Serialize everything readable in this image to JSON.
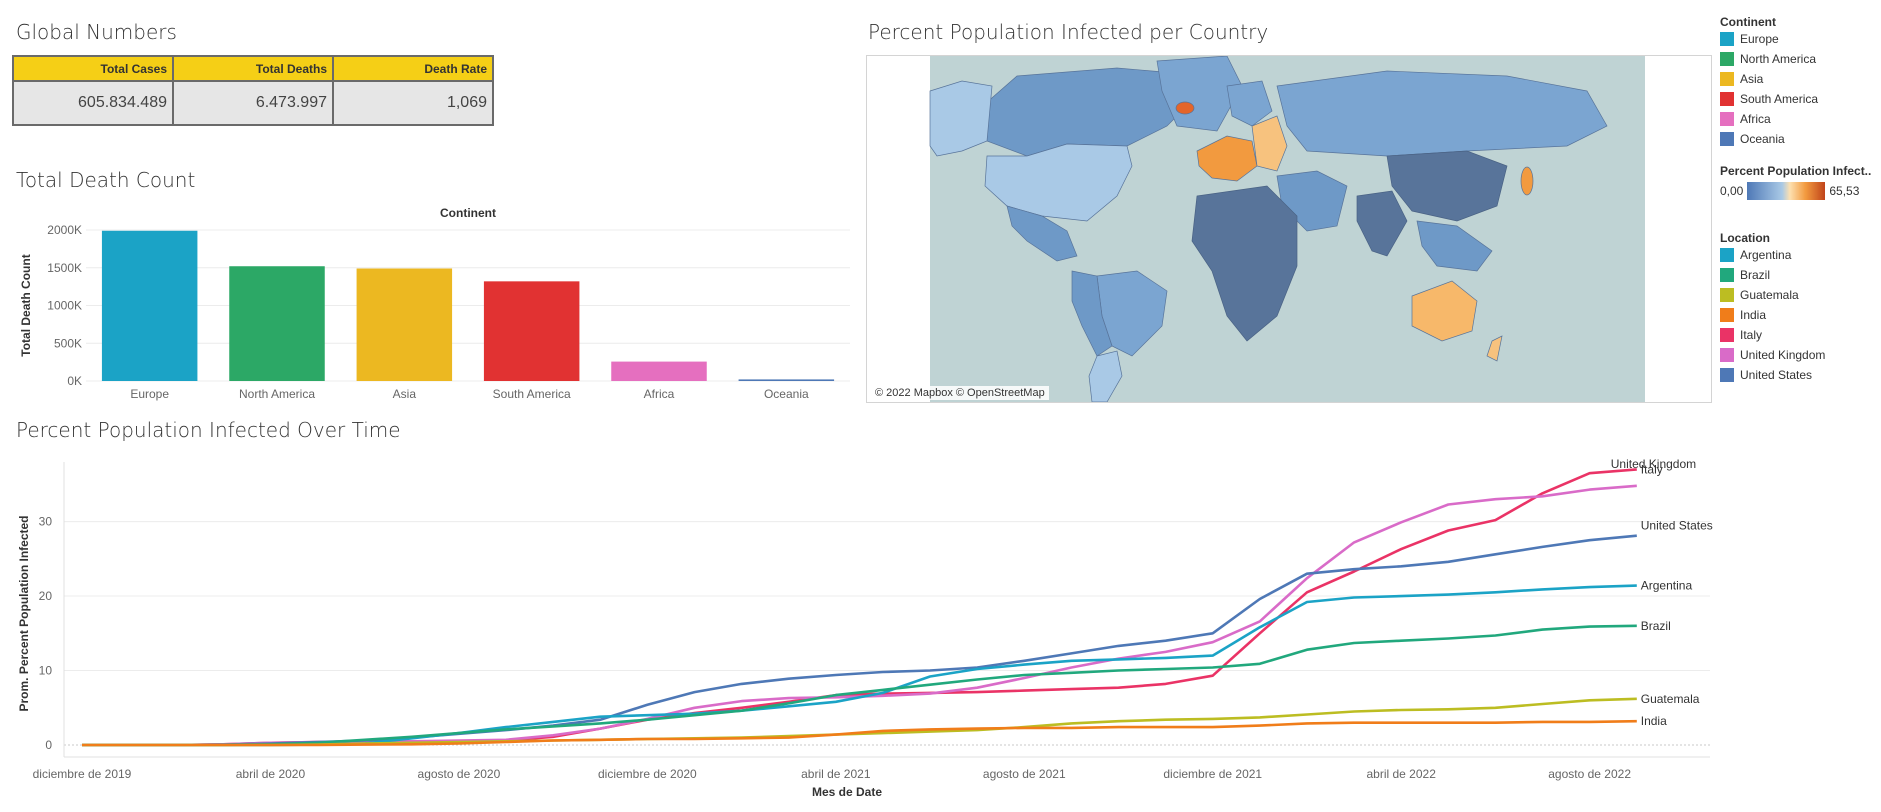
{
  "global_numbers": {
    "title": "Global Numbers",
    "headers": [
      "Total Cases",
      "Total Deaths",
      "Death Rate"
    ],
    "values": [
      "605.834.489",
      "6.473.997",
      "1,069"
    ]
  },
  "death_count": {
    "title": "Total Death Count"
  },
  "map": {
    "title": "Percent Population Infected per Country",
    "credit": "© 2022 Mapbox © OpenStreetMap"
  },
  "continent_legend": {
    "title": "Continent",
    "items": [
      {
        "label": "Europe",
        "color": "#1ba3c6"
      },
      {
        "label": "North America",
        "color": "#2ca866"
      },
      {
        "label": "Asia",
        "color": "#ecb821"
      },
      {
        "label": "South America",
        "color": "#e13232"
      },
      {
        "label": "Africa",
        "color": "#e56fbf"
      },
      {
        "label": "Oceania",
        "color": "#4e78b6"
      }
    ]
  },
  "color_legend": {
    "title": "Percent Population Infect..",
    "min": "0,00",
    "max": "65,53"
  },
  "location_legend": {
    "title": "Location",
    "items": [
      {
        "label": "Argentina",
        "color": "#1ba3c6"
      },
      {
        "label": "Brazil",
        "color": "#21a87d"
      },
      {
        "label": "Guatemala",
        "color": "#bcbd22"
      },
      {
        "label": "India",
        "color": "#f07d1a"
      },
      {
        "label": "Italy",
        "color": "#ea3366"
      },
      {
        "label": "United Kingdom",
        "color": "#d96bc8"
      },
      {
        "label": "United States",
        "color": "#4e78b6"
      }
    ]
  },
  "timeline": {
    "title": "Percent Population Infected Over Time"
  },
  "chart_data": [
    {
      "type": "bar",
      "title": "",
      "xlabel": "Continent",
      "ylabel": "Total Death Count",
      "categories": [
        "Europe",
        "North America",
        "Asia",
        "South America",
        "Africa",
        "Oceania"
      ],
      "values": [
        1990000,
        1520000,
        1490000,
        1320000,
        257000,
        21000
      ],
      "colors": [
        "#1ba3c6",
        "#2ca866",
        "#ecb821",
        "#e13232",
        "#e56fbf",
        "#4e78b6"
      ],
      "ylim": [
        0,
        2000000
      ],
      "yticks": [
        0,
        500000,
        1000000,
        1500000,
        2000000
      ],
      "ytick_labels": [
        "0K",
        "500K",
        "1000K",
        "1500K",
        "2000K"
      ],
      "grid": true
    },
    {
      "type": "line",
      "title": "",
      "xlabel": "Mes de Date",
      "ylabel": "Prom. Percent Population Infected",
      "x": [
        "2020-01",
        "2020-02",
        "2020-03",
        "2020-04",
        "2020-05",
        "2020-06",
        "2020-07",
        "2020-08",
        "2020-09",
        "2020-10",
        "2020-11",
        "2020-12",
        "2021-01",
        "2021-02",
        "2021-03",
        "2021-04",
        "2021-05",
        "2021-06",
        "2021-07",
        "2021-08",
        "2021-09",
        "2021-10",
        "2021-11",
        "2021-12",
        "2022-01",
        "2022-02",
        "2022-03",
        "2022-04",
        "2022-05",
        "2022-06",
        "2022-07",
        "2022-08",
        "2022-09"
      ],
      "xtick_labels": [
        "diciembre de 2019",
        "abril de 2020",
        "agosto de 2020",
        "diciembre de 2020",
        "abril de 2021",
        "agosto de 2021",
        "diciembre de 2021",
        "abril de 2022",
        "agosto de 2022"
      ],
      "ylim": [
        0,
        38
      ],
      "yticks": [
        0,
        10,
        20,
        30
      ],
      "series": [
        {
          "name": "Italy",
          "color": "#ea3366",
          "start": "2020-01",
          "values": [
            0,
            0,
            0.1,
            0.3,
            0.4,
            0.4,
            0.4,
            0.5,
            0.6,
            1.1,
            2.2,
            3.4,
            4.3,
            5.0,
            5.8,
            6.7,
            6.9,
            7.0,
            7.1,
            7.3,
            7.5,
            7.7,
            8.2,
            9.3,
            15.0,
            20.5,
            23.3,
            26.3,
            28.8,
            30.2,
            33.8,
            36.5,
            37.0
          ]
        },
        {
          "name": "United Kingdom",
          "color": "#d96bc8",
          "start": "2020-01",
          "values": [
            0,
            0,
            0.1,
            0.3,
            0.4,
            0.5,
            0.5,
            0.6,
            0.7,
            1.3,
            2.2,
            3.5,
            5.0,
            5.9,
            6.3,
            6.4,
            6.6,
            6.9,
            7.7,
            9.0,
            10.4,
            11.6,
            12.5,
            13.8,
            16.6,
            22.4,
            27.2,
            29.9,
            32.3,
            33.0,
            33.4,
            34.3,
            34.8
          ]
        },
        {
          "name": "United States",
          "color": "#4e78b6",
          "start": "2020-01",
          "values": [
            0,
            0,
            0.05,
            0.2,
            0.4,
            0.6,
            1.0,
            1.5,
            2.0,
            2.6,
            3.4,
            5.4,
            7.1,
            8.2,
            8.9,
            9.4,
            9.8,
            10.0,
            10.4,
            11.3,
            12.3,
            13.3,
            14.0,
            15.0,
            19.6,
            23.0,
            23.6,
            24.0,
            24.6,
            25.6,
            26.6,
            27.5,
            28.1
          ]
        },
        {
          "name": "Argentina",
          "color": "#1ba3c6",
          "start": "2020-01",
          "values": [
            0,
            0,
            0,
            0,
            0.05,
            0.2,
            0.9,
            1.6,
            2.4,
            3.1,
            3.8,
            4.0,
            4.2,
            4.6,
            5.2,
            5.8,
            7.0,
            9.2,
            10.2,
            10.8,
            11.3,
            11.5,
            11.7,
            12.0,
            15.8,
            19.2,
            19.8,
            20.0,
            20.2,
            20.5,
            20.9,
            21.2,
            21.4
          ]
        },
        {
          "name": "Brazil",
          "color": "#21a87d",
          "start": "2020-01",
          "values": [
            0,
            0,
            0,
            0.1,
            0.3,
            0.7,
            1.1,
            1.6,
            2.1,
            2.5,
            2.9,
            3.4,
            4.0,
            4.6,
            5.6,
            6.7,
            7.4,
            8.1,
            8.8,
            9.4,
            9.7,
            10.0,
            10.2,
            10.4,
            10.9,
            12.8,
            13.7,
            14.0,
            14.3,
            14.7,
            15.5,
            15.9,
            16.0
          ]
        },
        {
          "name": "Guatemala",
          "color": "#bcbd22",
          "start": "2020-01",
          "values": [
            0,
            0,
            0,
            0,
            0.05,
            0.2,
            0.3,
            0.4,
            0.5,
            0.6,
            0.7,
            0.8,
            0.9,
            1.0,
            1.2,
            1.4,
            1.6,
            1.8,
            2.0,
            2.4,
            2.9,
            3.2,
            3.4,
            3.5,
            3.7,
            4.1,
            4.5,
            4.7,
            4.8,
            5.0,
            5.5,
            6.0,
            6.2
          ]
        },
        {
          "name": "India",
          "color": "#f07d1a",
          "start": "2020-01",
          "values": [
            0,
            0,
            0,
            0,
            0,
            0.05,
            0.1,
            0.2,
            0.4,
            0.6,
            0.7,
            0.8,
            0.8,
            0.9,
            1.0,
            1.4,
            1.9,
            2.1,
            2.2,
            2.3,
            2.3,
            2.4,
            2.4,
            2.4,
            2.6,
            2.9,
            3.0,
            3.0,
            3.0,
            3.0,
            3.1,
            3.1,
            3.2
          ]
        }
      ],
      "grid": true
    }
  ]
}
